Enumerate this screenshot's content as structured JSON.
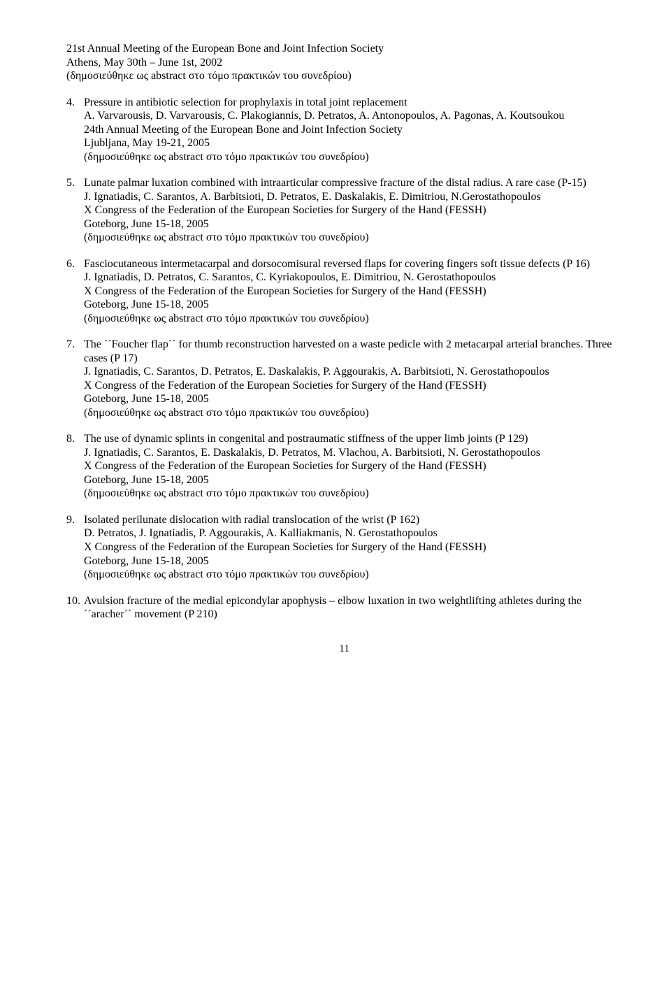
{
  "continuation": {
    "lines": [
      "21st Annual Meeting of the European Bone and Joint Infection Society",
      "Athens, May 30th – June 1st, 2002",
      "(δημοσιεύθηκε ως abstract στο τόμο πρακτικών του συνεδρίου)"
    ]
  },
  "items": [
    {
      "num": "4.",
      "lines": [
        "Pressure in antibiotic selection for prophylaxis in total joint replacement",
        "A. Varvarousis, D. Varvarousis, C. Plakogiannis, D. Petratos, A. Antonopoulos, A. Pagonas, A. Koutsoukou",
        "24th Annual Meeting of the European Bone and Joint Infection Society",
        "Ljubljana, May 19-21, 2005",
        "(δημοσιεύθηκε ως abstract στο τόμο πρακτικών του συνεδρίου)"
      ]
    },
    {
      "num": "5.",
      "lines": [
        "Lunate palmar luxation combined with intraarticular compressive fracture of the distal radius. A rare case (P-15)",
        "J. Ignatiadis, C. Sarantos, A. Barbitsioti, D. Petratos, E. Daskalakis, E. Dimitriou, N.Gerostathopoulos",
        "X Congress of the Federation of the European Societies for Surgery of the Hand (FESSH)",
        "Goteborg, June 15-18, 2005",
        "(δημοσιεύθηκε ως abstract στο τόμο πρακτικών του συνεδρίου)"
      ]
    },
    {
      "num": "6.",
      "lines": [
        "Fasciocutaneous intermetacarpal and dorsocomisural reversed flaps for covering fingers soft tissue defects (P 16)",
        "J. Ignatiadis, D. Petratos, C. Sarantos, C. Kyriakopoulos, E. Dimitriou, N. Gerostathopoulos",
        "X Congress of the Federation of the European Societies for Surgery of the Hand (FESSH)",
        "Goteborg, June 15-18, 2005",
        "(δημοσιεύθηκε ως abstract στο τόμο πρακτικών του συνεδρίου)"
      ]
    },
    {
      "num": "7.",
      "lines": [
        "The ´´Foucher flap´´ for thumb reconstruction harvested on a waste pedicle with 2 metacarpal arterial branches. Three cases (P 17)",
        "J. Ignatiadis, C. Sarantos, D. Petratos, E. Daskalakis, P. Aggourakis, A. Barbitsioti, N. Gerostathopoulos",
        "X Congress of the Federation of the European Societies for Surgery of the Hand (FESSH)",
        "Goteborg, June 15-18, 2005",
        "(δημοσιεύθηκε ως abstract στο τόμο πρακτικών του συνεδρίου)"
      ]
    },
    {
      "num": "8.",
      "lines": [
        "The use of dynamic splints in congenital and postraumatic stiffness of the upper limb joints (P 129)",
        "J. Ignatiadis, C. Sarantos, E. Daskalakis, D. Petratos, M. Vlachou, A. Barbitsioti, N. Gerostathopoulos",
        "X Congress of the Federation of the European Societies for Surgery of the Hand (FESSH)",
        "Goteborg, June 15-18, 2005",
        "(δημοσιεύθηκε ως abstract στο τόμο πρακτικών του συνεδρίου)"
      ]
    },
    {
      "num": "9.",
      "lines": [
        "Isolated perilunate dislocation with radial translocation of the wrist (P 162)",
        "D. Petratos, J. Ignatiadis, P. Aggourakis, A. Kalliakmanis, N. Gerostathopoulos",
        "X Congress of the Federation of the European Societies for Surgery of the Hand (FESSH)",
        "Goteborg, June 15-18, 2005",
        "(δημοσιεύθηκε ως abstract στο τόμο πρακτικών του συνεδρίου)"
      ]
    },
    {
      "num": "10.",
      "lines": [
        "Avulsion fracture of the medial epicondylar apophysis – elbow luxation in two weightlifting athletes during the ´´aracher´´ movement (P 210)"
      ]
    }
  ],
  "page_number": "11"
}
